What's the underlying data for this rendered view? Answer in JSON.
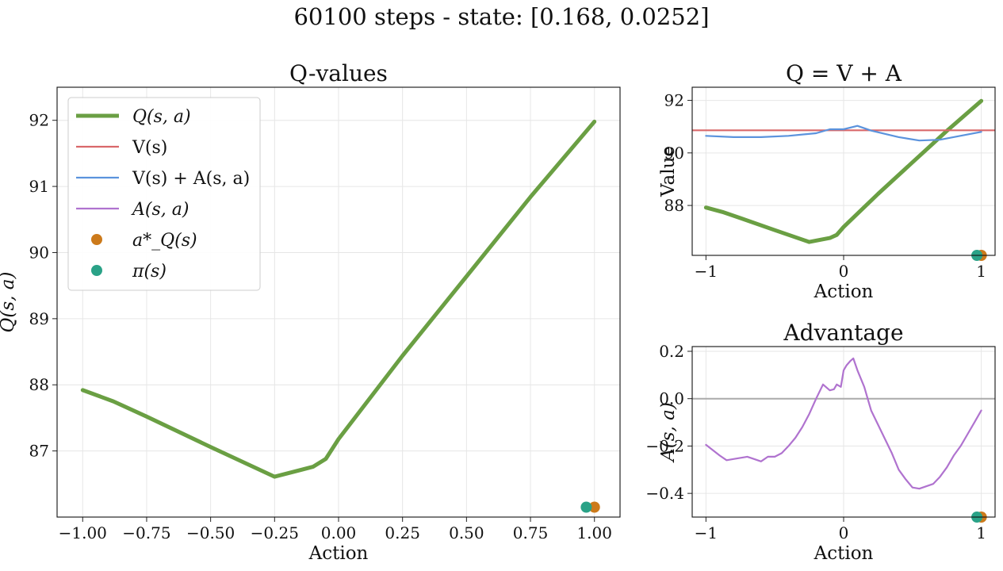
{
  "figure": {
    "title": "60100 steps - state: [0.168, 0.0252]"
  },
  "chart_data": [
    {
      "type": "line",
      "title": "Q-values",
      "xlabel": "Action",
      "ylabel": "Q(s, a)",
      "xlim": [
        -1.1,
        1.1
      ],
      "ylim": [
        86.0,
        92.5
      ],
      "xticks": [
        "-1.00",
        "-0.75",
        "-0.50",
        "-0.25",
        "0.00",
        "0.25",
        "0.50",
        "0.75",
        "1.00"
      ],
      "yticks": [
        "87",
        "88",
        "89",
        "90",
        "91",
        "92"
      ],
      "grid": true,
      "legend_position": "upper-left",
      "legend": [
        {
          "label": "Q(s, a)",
          "color": "#6a9f43",
          "kind": "thickline"
        },
        {
          "label": "V(s)",
          "color": "#d9686a",
          "kind": "line"
        },
        {
          "label": "V(s) + A(s, a)",
          "color": "#5b93dd",
          "kind": "line"
        },
        {
          "label": "A(s, a)",
          "color": "#b073cf",
          "kind": "line"
        },
        {
          "label": "a*_Q(s)",
          "color": "#cc7a1b",
          "kind": "dot"
        },
        {
          "label": "π(s)",
          "color": "#2aa287",
          "kind": "dot"
        }
      ],
      "series": [
        {
          "name": "Q(s, a)",
          "color": "#6a9f43",
          "x": [
            -1.0,
            -0.88,
            -0.75,
            -0.5,
            -0.25,
            -0.1,
            -0.05,
            0.0,
            0.25,
            0.5,
            0.75,
            1.0
          ],
          "y": [
            87.92,
            87.75,
            87.52,
            87.06,
            86.61,
            86.76,
            86.88,
            87.18,
            88.44,
            89.64,
            90.84,
            91.98
          ]
        }
      ],
      "markers": [
        {
          "name": "a*_Q(s)",
          "color": "#cc7a1b",
          "x": 1.0,
          "y": 86.15
        },
        {
          "name": "π(s)",
          "color": "#2aa287",
          "x": 0.968,
          "y": 86.15
        }
      ]
    },
    {
      "type": "line",
      "title": "Q = V + A",
      "xlabel": "Action",
      "ylabel": "Value",
      "xlim": [
        -1.1,
        1.1
      ],
      "ylim": [
        86.1,
        92.5
      ],
      "xticks": [
        "-1",
        "0",
        "1"
      ],
      "yticks": [
        "88",
        "90",
        "92"
      ],
      "grid": true,
      "series": [
        {
          "name": "Q(s, a)",
          "color": "#6a9f43",
          "x": [
            -1.0,
            -0.88,
            -0.75,
            -0.5,
            -0.25,
            -0.1,
            -0.05,
            0.0,
            0.25,
            0.5,
            0.75,
            1.0
          ],
          "y": [
            87.92,
            87.75,
            87.52,
            87.06,
            86.61,
            86.76,
            86.88,
            87.18,
            88.44,
            89.64,
            90.84,
            91.98
          ]
        },
        {
          "name": "V(s)",
          "color": "#d9686a",
          "x": [
            -1.1,
            1.1
          ],
          "y": [
            90.86,
            90.86
          ]
        },
        {
          "name": "V(s) + A(s, a)",
          "color": "#5b93dd",
          "x": [
            -1.0,
            -0.8,
            -0.6,
            -0.4,
            -0.2,
            -0.1,
            0.0,
            0.1,
            0.2,
            0.4,
            0.55,
            0.7,
            0.9,
            1.0
          ],
          "y": [
            90.65,
            90.6,
            90.6,
            90.65,
            90.75,
            90.9,
            90.9,
            91.03,
            90.85,
            90.6,
            90.47,
            90.5,
            90.7,
            90.8
          ]
        }
      ],
      "markers": [
        {
          "name": "a*_Q(s)",
          "color": "#cc7a1b",
          "x": 1.0,
          "y": 86.1
        },
        {
          "name": "π(s)",
          "color": "#2aa287",
          "x": 0.968,
          "y": 86.1
        }
      ]
    },
    {
      "type": "line",
      "title": "Advantage",
      "xlabel": "Action",
      "ylabel": "A(s, a)",
      "xlim": [
        -1.1,
        1.1
      ],
      "ylim": [
        -0.5,
        0.22
      ],
      "xticks": [
        "-1",
        "0",
        "1"
      ],
      "yticks": [
        "-0.4",
        "-0.2",
        "0.0",
        "0.2"
      ],
      "grid": true,
      "hline": 0.0,
      "series": [
        {
          "name": "A(s, a)",
          "color": "#b073cf",
          "x": [
            -1.0,
            -0.9,
            -0.85,
            -0.8,
            -0.7,
            -0.65,
            -0.6,
            -0.55,
            -0.5,
            -0.45,
            -0.4,
            -0.35,
            -0.3,
            -0.25,
            -0.2,
            -0.15,
            -0.12,
            -0.1,
            -0.07,
            -0.05,
            -0.02,
            0.0,
            0.02,
            0.05,
            0.07,
            0.1,
            0.15,
            0.2,
            0.25,
            0.3,
            0.35,
            0.4,
            0.45,
            0.5,
            0.55,
            0.6,
            0.65,
            0.7,
            0.75,
            0.8,
            0.85,
            0.9,
            0.95,
            1.0
          ],
          "y": [
            -0.195,
            -0.24,
            -0.26,
            -0.255,
            -0.245,
            -0.255,
            -0.265,
            -0.245,
            -0.245,
            -0.23,
            -0.2,
            -0.165,
            -0.12,
            -0.065,
            0.0,
            0.06,
            0.045,
            0.035,
            0.04,
            0.06,
            0.05,
            0.12,
            0.14,
            0.16,
            0.17,
            0.12,
            0.05,
            -0.05,
            -0.11,
            -0.17,
            -0.23,
            -0.3,
            -0.34,
            -0.375,
            -0.38,
            -0.37,
            -0.36,
            -0.33,
            -0.29,
            -0.24,
            -0.2,
            -0.15,
            -0.1,
            -0.05
          ]
        }
      ],
      "markers": [
        {
          "name": "a*_Q(s)",
          "color": "#cc7a1b",
          "x": 1.0,
          "y": -0.5
        },
        {
          "name": "π(s)",
          "color": "#2aa287",
          "x": 0.968,
          "y": -0.5
        }
      ]
    }
  ]
}
